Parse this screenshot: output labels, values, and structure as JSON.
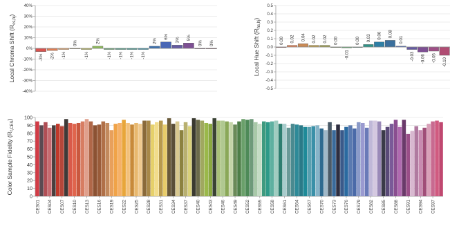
{
  "chart_data": [
    {
      "type": "bar",
      "ylabel_main": "Local Chroma Shift (R",
      "ylabel_sub": "cs,hj",
      "ylabel_close": ")",
      "ylim": [
        -40,
        40
      ],
      "ytick_labels": [
        "40%",
        "30%",
        "20%",
        "10%",
        "0%",
        "-10%",
        "-20%",
        "-30%",
        "-40%"
      ],
      "ytick_values": [
        40,
        30,
        20,
        10,
        0,
        -10,
        -20,
        -30,
        -40
      ],
      "values": [
        -3,
        -2,
        -1,
        0,
        -1,
        2,
        -1,
        -1,
        -1,
        -1,
        2,
        6,
        3,
        5,
        0,
        0
      ],
      "value_labels": [
        "-3%",
        "-2%",
        "-1%",
        "0%",
        "-1%",
        "2%",
        "-1%",
        "-1%",
        "-1%",
        "-1%",
        "2%",
        "6%",
        "3%",
        "5%",
        "0%",
        "0%"
      ],
      "colors": [
        "#d9534f",
        "#e08055",
        "#e8a05c",
        "#d8b84e",
        "#b9b852",
        "#8dbb59",
        "#5ea66a",
        "#3e9a7f",
        "#2e9488",
        "#2f8ea5",
        "#3a6fad",
        "#4a67b5",
        "#655ba2",
        "#7d4f93",
        "#9e4f86",
        "#b04c73"
      ],
      "grid": true
    },
    {
      "type": "bar",
      "ylabel_main": "Local Hue Shift (R",
      "ylabel_sub": "hs,hj",
      "ylabel_close": ")",
      "ylim": [
        -0.5,
        0.5
      ],
      "ytick_labels": [
        "0.5",
        "0.4",
        "0.3",
        "0.2",
        "0.1",
        "0.0",
        "-0.1",
        "-0.2",
        "-0.3",
        "-0.4",
        "-0.5"
      ],
      "ytick_values": [
        0.5,
        0.4,
        0.3,
        0.2,
        0.1,
        0.0,
        -0.1,
        -0.2,
        -0.3,
        -0.4,
        -0.5
      ],
      "values": [
        0.0,
        0.02,
        0.04,
        0.02,
        0.02,
        0.0,
        -0.01,
        0.0,
        0.03,
        0.06,
        0.08,
        0.01,
        -0.03,
        -0.06,
        -0.05,
        -0.1
      ],
      "value_labels": [
        "0.00",
        "0.02",
        "0.04",
        "0.02",
        "0.02",
        "0.00",
        "-0.01",
        "0.00",
        "0.03",
        "0.06",
        "0.08",
        "0.01",
        "-0.03",
        "-0.06",
        "-0.05",
        "-0.10"
      ],
      "colors": [
        "#d9534f",
        "#e08055",
        "#c98a55",
        "#bfa04e",
        "#9e9e4e",
        "#7da85a",
        "#5ea66a",
        "#3e9a7f",
        "#2e9488",
        "#2f7fa5",
        "#3a6f9d",
        "#4a67b5",
        "#655ba2",
        "#7d4f93",
        "#9e4f86",
        "#b04c73"
      ],
      "grid": true
    },
    {
      "type": "bar",
      "ylabel_main": "Color Sample Fidelity (R",
      "ylabel_sub": "f,CES",
      "ylabel_close": ")",
      "ylim": [
        0,
        100
      ],
      "ytick_labels": [
        "100",
        "90",
        "80",
        "70",
        "60",
        "50",
        "40",
        "30",
        "20",
        "10",
        "0"
      ],
      "ytick_values": [
        100,
        90,
        80,
        70,
        60,
        50,
        40,
        30,
        20,
        10,
        0
      ],
      "categories": [
        "CES01",
        "CES02",
        "CES03",
        "CES04",
        "CES05",
        "CES06",
        "CES07",
        "CES08",
        "CES09",
        "CES10",
        "CES11",
        "CES12",
        "CES13",
        "CES14",
        "CES15",
        "CES16",
        "CES17",
        "CES18",
        "CES19",
        "CES20",
        "CES21",
        "CES22",
        "CES23",
        "CES24",
        "CES25",
        "CES26",
        "CES27",
        "CES28",
        "CES29",
        "CES30",
        "CES31",
        "CES32",
        "CES33",
        "CES34",
        "CES35",
        "CES36",
        "CES37",
        "CES38",
        "CES39",
        "CES40",
        "CES41",
        "CES42",
        "CES43",
        "CES44",
        "CES45",
        "CES46",
        "CES47",
        "CES48",
        "CES49",
        "CES50",
        "CES51",
        "CES52",
        "CES53",
        "CES54",
        "CES55",
        "CES56",
        "CES57",
        "CES58",
        "CES59",
        "CES60",
        "CES61",
        "CES62",
        "CES63",
        "CES64",
        "CES65",
        "CES66",
        "CES67",
        "CES68",
        "CES69",
        "CES70",
        "CES71",
        "CES72",
        "CES73",
        "CES74",
        "CES75",
        "CES76",
        "CES77",
        "CES78",
        "CES79",
        "CES80",
        "CES81",
        "CES82",
        "CES83",
        "CES84",
        "CES85",
        "CES86",
        "CES87",
        "CES88",
        "CES89",
        "CES90",
        "CES91",
        "CES92",
        "CES93",
        "CES94",
        "CES95",
        "CES96",
        "CES97",
        "CES98",
        "CES99"
      ],
      "shown_tick_labels": [
        "CES01",
        "CES04",
        "CES07",
        "CES10",
        "CES13",
        "CES16",
        "CES19",
        "CES22",
        "CES25",
        "CES28",
        "CES31",
        "CES34",
        "CES37",
        "CES40",
        "CES43",
        "CES46",
        "CES49",
        "CES52",
        "CES55",
        "CES58",
        "CES61",
        "CES64",
        "CES67",
        "CES70",
        "CES73",
        "CES76",
        "CES79",
        "CES82",
        "CES85",
        "CES88",
        "CES91",
        "CES94",
        "CES97"
      ],
      "values": [
        95,
        90,
        94,
        87,
        90,
        92,
        89,
        98,
        93,
        92,
        93,
        95,
        98,
        95,
        90,
        91,
        95,
        93,
        84,
        92,
        93,
        97,
        93,
        91,
        93,
        92,
        96,
        96,
        91,
        94,
        96,
        91,
        99,
        92,
        95,
        84,
        94,
        89,
        99,
        97,
        96,
        93,
        92,
        99,
        96,
        96,
        95,
        94,
        91,
        95,
        98,
        97,
        98,
        94,
        92,
        95,
        94,
        95,
        96,
        92,
        92,
        87,
        92,
        91,
        90,
        88,
        88,
        89,
        90,
        86,
        84,
        94,
        84,
        91,
        84,
        88,
        90,
        86,
        94,
        93,
        87,
        96,
        96,
        95,
        84,
        88,
        92,
        97,
        88,
        97,
        79,
        83,
        89,
        84,
        87,
        92,
        95,
        96,
        94
      ],
      "colors": [
        "#d23c46",
        "#5a4a52",
        "#b04e55",
        "#c66a70",
        "#4a3e3e",
        "#c0392b",
        "#b5473a",
        "#3e3a38",
        "#d95a4a",
        "#e0654d",
        "#c9583f",
        "#d77d62",
        "#e0a08c",
        "#b06748",
        "#8c5233",
        "#9a5c3a",
        "#b07048",
        "#c28a5e",
        "#e8a05c",
        "#f0a348",
        "#f5b068",
        "#e8a63a",
        "#f2c07a",
        "#c88a3a",
        "#e8b86e",
        "#efc98e",
        "#8a6a3a",
        "#a88848",
        "#e6d06a",
        "#f2dc8a",
        "#b89a4e",
        "#e8cc6a",
        "#6a5a3a",
        "#5a4e38",
        "#d8c890",
        "#8c8240",
        "#b8b070",
        "#d8d07a",
        "#3a3a30",
        "#6a6a4a",
        "#a0a860",
        "#9ab84a",
        "#8aa840",
        "#3a4234",
        "#a8c078",
        "#b0c890",
        "#8aa858",
        "#c4d4a8",
        "#6a8a58",
        "#4e7e48",
        "#6aa06a",
        "#4e8a58",
        "#6e9a7a",
        "#a8c8a8",
        "#c4dcc4",
        "#3e9a7f",
        "#2e9a88",
        "#5eb0a0",
        "#a0ccc0",
        "#2e7e70",
        "#a8cccc",
        "#6a9a98",
        "#4a8a90",
        "#2e8a98",
        "#2a7a88",
        "#1e8a98",
        "#5aa0b0",
        "#3a90a8",
        "#86b4c8",
        "#2e6a90",
        "#a0b8c8",
        "#4a5a68",
        "#3a6a9a",
        "#2e2e40",
        "#3a5a8a",
        "#2a6aa0",
        "#5a7ab0",
        "#4a6aa8",
        "#8a9ac8",
        "#9a9ad0",
        "#6a7ab8",
        "#c0b8d8",
        "#d4c8e0",
        "#9a8ab8",
        "#3a3a48",
        "#5a4a78",
        "#7a5a98",
        "#8a4e90",
        "#b06ab0",
        "#6a3a6a",
        "#9a4e88",
        "#d8b8d0",
        "#b07aa0",
        "#c88ab0",
        "#a04e78",
        "#d8a0b8",
        "#c86a90",
        "#d05a80",
        "#c04870"
      ],
      "grid": true
    }
  ]
}
